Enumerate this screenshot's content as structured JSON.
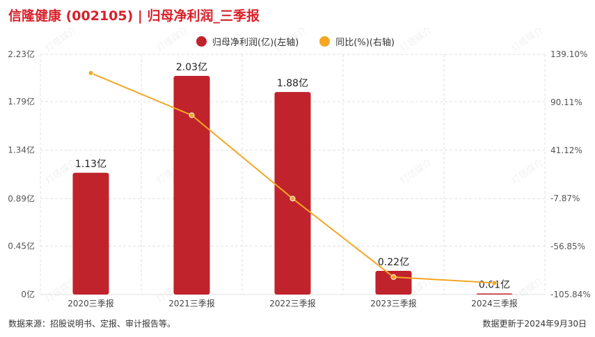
{
  "header": {
    "title": "信隆健康 (002105) | 归母净利润_三季报"
  },
  "legend": {
    "bar_label": "归母净利润(亿)(左轴)",
    "line_label": "同比(%)(右轴)"
  },
  "footer": {
    "source": "数据来源：招股说明书、定报、审计报告等。",
    "updated": "数据更新于2024年9月30日"
  },
  "colors": {
    "bar": "#c0232c",
    "line": "#f5a623",
    "title": "#d8202a",
    "grid": "#e0e0e0"
  },
  "watermark": "灯塔媒介",
  "chart_data": {
    "type": "bar",
    "categories": [
      "2020三季报",
      "2021三季报",
      "2022三季报",
      "2023三季报",
      "2024三季报"
    ],
    "series": [
      {
        "name": "归母净利润(亿)(左轴)",
        "type": "bar",
        "axis": "left",
        "values": [
          1.13,
          2.03,
          1.88,
          0.22,
          0.01
        ],
        "labels": [
          "1.13亿",
          "2.03亿",
          "1.88亿",
          "0.22亿",
          "0.01亿"
        ]
      },
      {
        "name": "同比(%)(右轴)",
        "type": "line",
        "axis": "right",
        "values": [
          120,
          77,
          -8,
          -88,
          -94
        ]
      }
    ],
    "left_axis": {
      "min": 0,
      "max": 2.23,
      "ticks": [
        0,
        0.45,
        0.89,
        1.34,
        1.79,
        2.23
      ],
      "tick_labels": [
        "0亿",
        "0.45亿",
        "0.89亿",
        "1.34亿",
        "1.79亿",
        "2.23亿"
      ]
    },
    "right_axis": {
      "min": -105.84,
      "max": 139.1,
      "ticks": [
        -105.84,
        -56.85,
        -7.87,
        41.12,
        90.11,
        139.1
      ],
      "tick_labels": [
        "-105.84%",
        "-56.85%",
        "-7.87%",
        "41.12%",
        "90.11%",
        "139.10%"
      ]
    },
    "grid": true,
    "legend_position": "top-center"
  }
}
